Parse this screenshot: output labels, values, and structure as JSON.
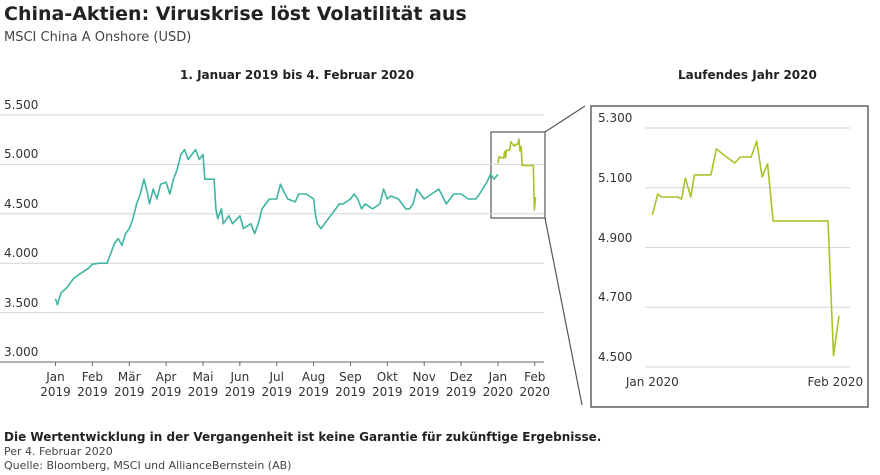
{
  "title": "China-Aktien: Viruskrise löst Volatilität aus",
  "subtitle": "MSCI China A Onshore (USD)",
  "notes": [
    "Die Wertentwicklung in der Vergangenheit ist keine Garantie für zukünftige Ergebnisse.",
    "Per 4. Februar 2020",
    "Quelle: Bloomberg, MSCI und AllianceBernstein (AB)"
  ],
  "chart_data": [
    {
      "type": "line",
      "title": "1. Januar 2019 bis 4. Februar 2020",
      "xlim": [
        -0.15,
        13.25
      ],
      "xticks": [
        {
          "value": 0,
          "label": "Jan 2019"
        },
        {
          "value": 1,
          "label": "Feb 2019"
        },
        {
          "value": 2,
          "label": "Mär 2019"
        },
        {
          "value": 3,
          "label": "Apr 2019"
        },
        {
          "value": 4,
          "label": "Mai 2019"
        },
        {
          "value": 5,
          "label": "Jun 2019"
        },
        {
          "value": 6,
          "label": "Jul 2019"
        },
        {
          "value": 7,
          "label": "Aug 2019"
        },
        {
          "value": 8,
          "label": "Sep 2019"
        },
        {
          "value": 9,
          "label": "Okt 2019"
        },
        {
          "value": 10,
          "label": "Nov 2019"
        },
        {
          "value": 11,
          "label": "Dez 2019"
        },
        {
          "value": 12,
          "label": "Jan 2020"
        },
        {
          "value": 13,
          "label": "Feb 2020"
        }
      ],
      "ylim": [
        3000,
        5500
      ],
      "yticks": [
        {
          "value": 3000,
          "label": "3.000"
        },
        {
          "value": 3500,
          "label": "3.500"
        },
        {
          "value": 4000,
          "label": "4.000"
        },
        {
          "value": 4500,
          "label": "4.500"
        },
        {
          "value": 5000,
          "label": "5.000"
        },
        {
          "value": 5500,
          "label": "5.500"
        }
      ],
      "grid": true,
      "series": [
        {
          "color": "#3db5a2",
          "x": [
            0,
            0.05,
            0.15,
            0.3,
            0.5,
            0.7,
            0.9,
            1.0,
            1.2,
            1.4,
            1.5,
            1.6,
            1.7,
            1.8,
            1.9,
            2.0,
            2.1,
            2.2,
            2.3,
            2.4,
            2.5,
            2.55,
            2.65,
            2.75,
            2.85,
            3.0,
            3.1,
            3.2,
            3.3,
            3.4,
            3.5,
            3.6,
            3.7,
            3.8,
            3.9,
            4.0,
            4.05,
            4.2,
            4.3,
            4.35,
            4.4,
            4.5,
            4.55,
            4.7,
            4.8,
            5.0,
            5.1,
            5.3,
            5.4,
            5.5,
            5.6,
            5.7,
            5.8,
            6.0,
            6.1,
            6.2,
            6.3,
            6.5,
            6.6,
            6.8,
            7.0,
            7.05,
            7.1,
            7.2,
            7.3,
            7.4,
            7.5,
            7.6,
            7.7,
            7.8,
            8.0,
            8.1,
            8.2,
            8.3,
            8.4,
            8.6,
            8.8,
            8.9,
            9.0,
            9.1,
            9.3,
            9.5,
            9.6,
            9.7,
            9.8,
            10.0,
            10.2,
            10.4,
            10.6,
            10.8,
            11.0,
            11.2,
            11.4,
            11.5,
            11.7,
            11.8,
            11.9,
            12.0
          ],
          "values": [
            3640,
            3580,
            3700,
            3750,
            3850,
            3900,
            3950,
            3990,
            4000,
            4000,
            4100,
            4200,
            4250,
            4180,
            4300,
            4350,
            4450,
            4600,
            4700,
            4850,
            4700,
            4600,
            4750,
            4650,
            4800,
            4820,
            4700,
            4850,
            4950,
            5100,
            5150,
            5050,
            5100,
            5150,
            5050,
            5100,
            4850,
            4850,
            4850,
            4550,
            4450,
            4550,
            4400,
            4480,
            4400,
            4480,
            4350,
            4400,
            4300,
            4400,
            4550,
            4600,
            4650,
            4650,
            4800,
            4720,
            4650,
            4620,
            4700,
            4700,
            4650,
            4500,
            4400,
            4350,
            4400,
            4450,
            4500,
            4550,
            4600,
            4600,
            4650,
            4700,
            4650,
            4550,
            4600,
            4550,
            4600,
            4750,
            4650,
            4680,
            4650,
            4550,
            4550,
            4600,
            4750,
            4650,
            4700,
            4750,
            4600,
            4700,
            4700,
            4650,
            4650,
            4700,
            4820,
            4900,
            4850,
            4900
          ]
        },
        {
          "color": "#a5c42a",
          "x": [
            12.0,
            12.03,
            12.05,
            12.14,
            12.16,
            12.18,
            12.21,
            12.23,
            12.32,
            12.35,
            12.39,
            12.45,
            12.48,
            12.54,
            12.57,
            12.6,
            12.63,
            12.66,
            12.96,
            12.99,
            13.02
          ],
          "values": [
            5009,
            5079,
            5069,
            5069,
            5062,
            5132,
            5069,
            5143,
            5143,
            5230,
            5210,
            5183,
            5203,
            5203,
            5256,
            5136,
            5180,
            4989,
            4989,
            4538,
            4671
          ]
        }
      ]
    },
    {
      "type": "line",
      "title": "Laufendes Jahr 2020",
      "xlim": [
        11.96,
        13.08
      ],
      "xticks": [
        {
          "value": 12,
          "label": "Jan 2020"
        },
        {
          "value": 13,
          "label": "Feb 2020"
        }
      ],
      "ylim": [
        4500,
        5300
      ],
      "yticks": [
        {
          "value": 4500,
          "label": "4.500"
        },
        {
          "value": 4700,
          "label": "4.700"
        },
        {
          "value": 4900,
          "label": "4.900"
        },
        {
          "value": 5100,
          "label": "5.100"
        },
        {
          "value": 5300,
          "label": "5.300"
        }
      ],
      "grid": true,
      "series": [
        {
          "color": "#a5c42a",
          "x": [
            12.0,
            12.03,
            12.05,
            12.14,
            12.16,
            12.18,
            12.21,
            12.23,
            12.32,
            12.35,
            12.39,
            12.45,
            12.48,
            12.54,
            12.57,
            12.6,
            12.63,
            12.66,
            12.96,
            12.99,
            13.02
          ],
          "values": [
            5009,
            5079,
            5069,
            5069,
            5062,
            5132,
            5069,
            5143,
            5143,
            5230,
            5210,
            5183,
            5203,
            5203,
            5256,
            5136,
            5180,
            4989,
            4989,
            4538,
            4671
          ]
        }
      ]
    }
  ]
}
